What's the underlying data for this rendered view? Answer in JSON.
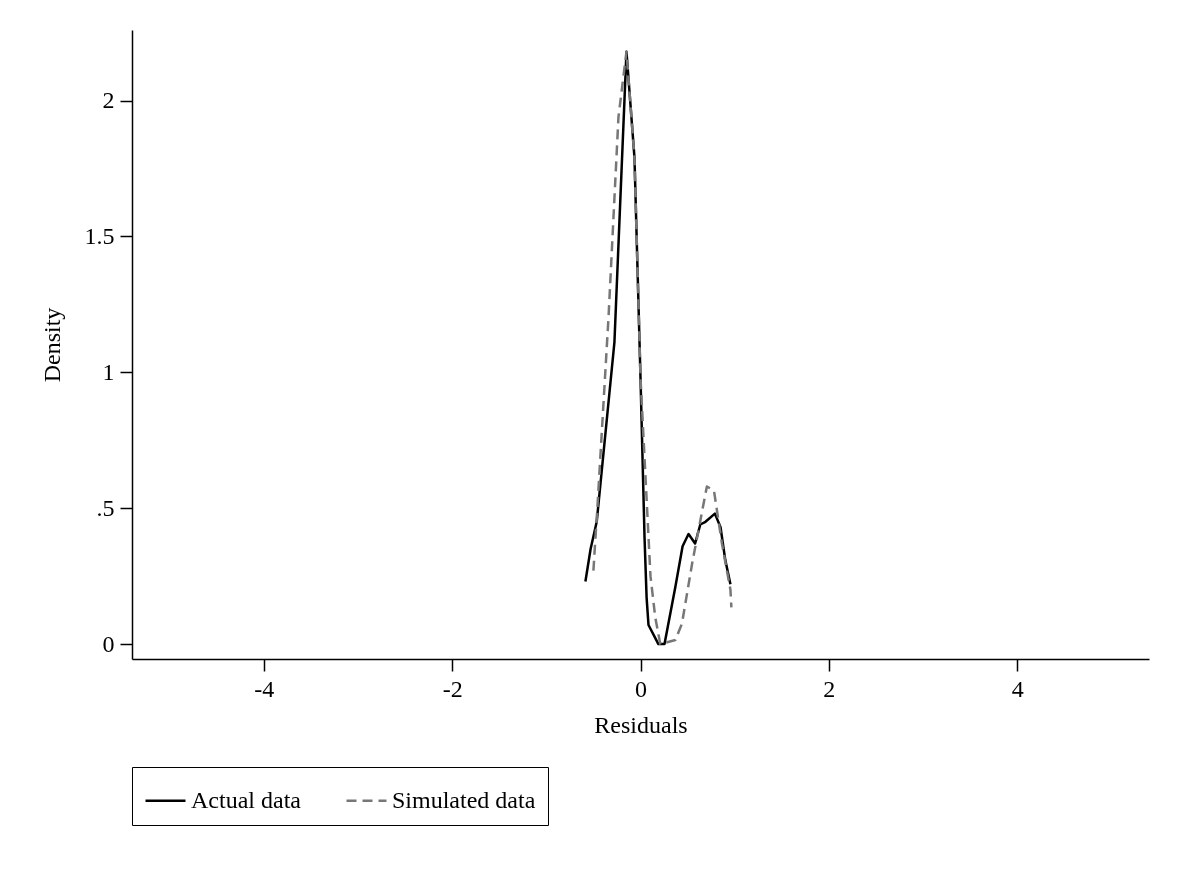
{
  "chart_data": {
    "type": "line",
    "xlabel": "Residuals",
    "ylabel": "Density",
    "xlim": [
      -5.4,
      5.4
    ],
    "ylim": [
      -0.055,
      2.26
    ],
    "xticks": [
      -4,
      -2,
      0,
      2,
      4
    ],
    "yticks": [
      0,
      {
        "value": 0.5,
        "label": ".5"
      },
      1,
      1.5,
      2
    ],
    "grid": false,
    "legend": "bottom",
    "marker": "none",
    "series": [
      {
        "name": "Actual data",
        "color": "#000000",
        "line_style": "solid",
        "x": [
          -0.585,
          -0.53,
          -0.465,
          -0.277,
          -0.149,
          -0.064,
          0,
          0.043,
          0.065,
          0.085,
          0.19,
          0.255,
          0.37,
          0.447,
          0.51,
          0.58,
          0.635,
          0.69,
          0.79,
          0.85,
          0.9,
          0.955
        ],
        "values": [
          0.23,
          0.35,
          0.45,
          1.11,
          2.18,
          1.79,
          0.98,
          0.39,
          0.17,
          0.07,
          0,
          0,
          0.21,
          0.36,
          0.405,
          0.37,
          0.44,
          0.45,
          0.48,
          0.43,
          0.31,
          0.22
        ]
      },
      {
        "name": "Simulated data",
        "color": "#777777",
        "line_style": "dashed",
        "x": [
          -0.5,
          -0.475,
          -0.465,
          -0.34,
          -0.234,
          -0.149,
          -0.064,
          0,
          0.106,
          0.156,
          0.21,
          0.37,
          0.44,
          0.55,
          0.705,
          0.78,
          0.865,
          0.955,
          0.965
        ],
        "values": [
          0.27,
          0.41,
          0.46,
          1.2,
          1.94,
          2.18,
          1.79,
          0.98,
          0.25,
          0.1,
          0,
          0.015,
          0.075,
          0.3,
          0.58,
          0.565,
          0.37,
          0.2,
          0.135
        ]
      }
    ]
  }
}
